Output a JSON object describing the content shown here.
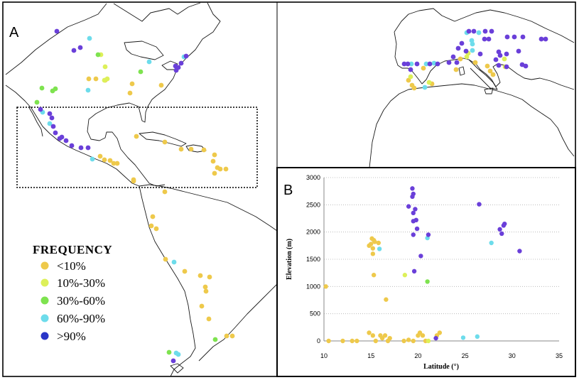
{
  "panels": {
    "a_label": "A",
    "b_label": "B"
  },
  "legend": {
    "title": "FREQUENCY",
    "items": [
      {
        "label": "<10%",
        "color": "#EEC94B"
      },
      {
        "label": "10%-30%",
        "color": "#DDF059"
      },
      {
        "label": "30%-60%",
        "color": "#7EE34F"
      },
      {
        "label": "60%-90%",
        "color": "#6DDCEB"
      },
      {
        "label": ">90%",
        "color": "#6A3FD9"
      }
    ]
  },
  "chart_data": {
    "type": "scatter",
    "title": "",
    "xlabel": "Latitude (°)",
    "ylabel": "Elevation (m)",
    "xlim": [
      10,
      35
    ],
    "ylim": [
      0,
      3000
    ],
    "x_ticks": [
      "10",
      "15",
      "20",
      "25",
      "30",
      "35"
    ],
    "y_ticks": [
      "0",
      "500",
      "1000",
      "1500",
      "2000",
      "2500",
      "3000"
    ],
    "grid": "horizontal",
    "series": [
      {
        "color": "#EEC94B",
        "points": [
          [
            10.2,
            1000
          ],
          [
            10.5,
            0
          ],
          [
            12,
            0
          ],
          [
            13,
            0
          ],
          [
            13.5,
            0
          ],
          [
            14.8,
            150
          ],
          [
            15.2,
            100
          ],
          [
            15.5,
            0
          ],
          [
            16,
            100
          ],
          [
            16.2,
            50
          ],
          [
            16.5,
            100
          ],
          [
            16.8,
            0
          ],
          [
            17,
            50
          ],
          [
            18.5,
            0
          ],
          [
            19,
            20
          ],
          [
            19.5,
            0
          ],
          [
            20,
            100
          ],
          [
            20.2,
            150
          ],
          [
            20.5,
            100
          ],
          [
            20.8,
            0
          ],
          [
            22.3,
            150
          ],
          [
            22,
            100
          ],
          [
            14.8,
            1750
          ],
          [
            15.1,
            1880
          ],
          [
            15.3,
            1850
          ],
          [
            15.2,
            1700
          ],
          [
            15,
            1780
          ],
          [
            15.4,
            1820
          ],
          [
            15.8,
            1800
          ],
          [
            15.2,
            1600
          ],
          [
            15.3,
            1210
          ],
          [
            16.6,
            760
          ]
        ]
      },
      {
        "color": "#DDF059",
        "points": [
          [
            18.6,
            1210
          ],
          [
            21.1,
            0
          ]
        ]
      },
      {
        "color": "#7EE34F",
        "points": [
          [
            21,
            1090
          ]
        ]
      },
      {
        "color": "#6DDCEB",
        "points": [
          [
            15.9,
            1690
          ],
          [
            21,
            1890
          ],
          [
            24.8,
            60
          ],
          [
            26.3,
            80
          ],
          [
            27.8,
            1800
          ]
        ]
      },
      {
        "color": "#6A3FD9",
        "points": [
          [
            19.4,
            2800
          ],
          [
            19.5,
            2700
          ],
          [
            19.4,
            2650
          ],
          [
            19.0,
            2470
          ],
          [
            19.5,
            2350
          ],
          [
            19.7,
            2420
          ],
          [
            19.8,
            2220
          ],
          [
            19.5,
            2200
          ],
          [
            19.9,
            2060
          ],
          [
            19.5,
            1950
          ],
          [
            21.1,
            1950
          ],
          [
            20.3,
            1560
          ],
          [
            19.6,
            1280
          ],
          [
            26.5,
            2510
          ],
          [
            28.7,
            2050
          ],
          [
            28.9,
            1970
          ],
          [
            29.1,
            2120
          ],
          [
            29.2,
            2150
          ],
          [
            30.8,
            1650
          ],
          [
            21.9,
            50
          ]
        ]
      }
    ]
  }
}
